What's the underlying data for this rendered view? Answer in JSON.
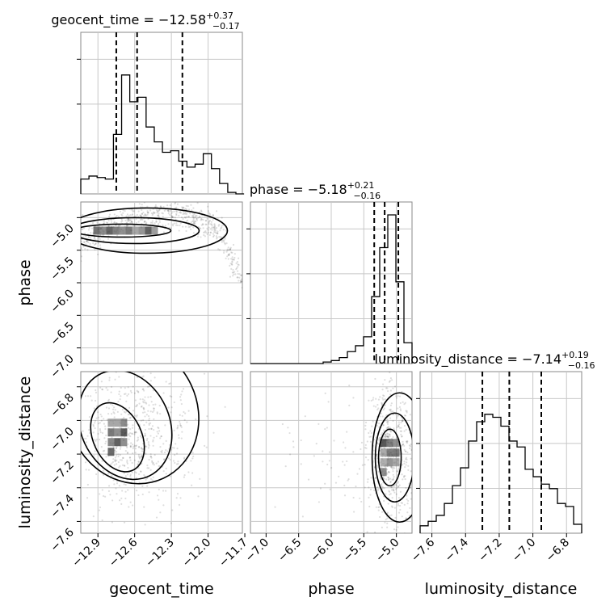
{
  "chart_data": {
    "type": "corner",
    "parameters": [
      "geocent_time",
      "phase",
      "luminosity_distance"
    ],
    "summaries": [
      {
        "param": "geocent_time",
        "label": "geocent_time = ",
        "median": "−12.58",
        "plus": "+0.37",
        "minus": "−0.17",
        "quantiles": [
          -12.75,
          -12.58,
          -12.21
        ]
      },
      {
        "param": "phase",
        "label": "phase = ",
        "median": "−5.18",
        "plus": "+0.21",
        "minus": "−0.16",
        "quantiles": [
          -5.34,
          -5.18,
          -4.97
        ]
      },
      {
        "param": "luminosity_distance",
        "label": "luminosity_distance = ",
        "median": "−7.14",
        "plus": "+0.19",
        "minus": "−0.16",
        "quantiles": [
          -7.3,
          -7.14,
          -6.95
        ]
      }
    ],
    "axes": {
      "geocent_time": {
        "range": [
          -13.04,
          -11.72
        ],
        "ticks": [
          -12.9,
          -12.6,
          -12.3,
          -12.0,
          -11.7
        ],
        "tick_labels": [
          "−12.9",
          "−12.6",
          "−12.3",
          "−12.0",
          "−11.7"
        ]
      },
      "phase": {
        "range": [
          -7.24,
          -4.76
        ],
        "ticks": [
          -7.0,
          -6.5,
          -6.0,
          -5.5,
          -5.0
        ],
        "tick_labels": [
          "−7.0",
          "−6.5",
          "−6.0",
          "−5.5",
          "−5.0"
        ]
      },
      "luminosity_distance": {
        "range": [
          -7.67,
          -6.71
        ],
        "ticks": [
          -7.6,
          -7.4,
          -7.2,
          -7.0,
          -6.8
        ],
        "tick_labels": [
          "−7.6",
          "−7.4",
          "−7.2",
          "−7.0",
          "−6.8"
        ]
      }
    },
    "histograms": {
      "geocent_time": {
        "edges_start": -13.04,
        "bin_width": 0.0667,
        "counts": [
          0.1,
          0.12,
          0.11,
          0.1,
          0.4,
          0.8,
          0.62,
          0.65,
          0.45,
          0.35,
          0.28,
          0.29,
          0.22,
          0.18,
          0.2,
          0.27,
          0.17,
          0.07,
          0.01,
          0.0
        ]
      },
      "phase": {
        "edges_start": -7.24,
        "bin_width": 0.124,
        "counts": [
          0,
          0,
          0,
          0,
          0,
          0,
          0,
          0,
          0,
          0.01,
          0.02,
          0.04,
          0.08,
          0.12,
          0.18,
          0.45,
          0.78,
          1.0,
          0.55,
          0.14
        ]
      },
      "luminosity_distance": {
        "edges_start": -7.67,
        "bin_width": 0.048,
        "counts": [
          0.05,
          0.08,
          0.12,
          0.2,
          0.32,
          0.44,
          0.62,
          0.75,
          0.8,
          0.78,
          0.72,
          0.62,
          0.58,
          0.43,
          0.38,
          0.33,
          0.3,
          0.2,
          0.18,
          0.06
        ]
      }
    },
    "pairs": [
      {
        "x": "geocent_time",
        "y": "phase",
        "density_center": [
          -12.7,
          -5.2
        ]
      },
      {
        "x": "geocent_time",
        "y": "luminosity_distance",
        "density_center": [
          -12.74,
          -7.1
        ]
      },
      {
        "x": "phase",
        "y": "luminosity_distance",
        "density_center": [
          -5.1,
          -7.22
        ]
      }
    ],
    "grid": true
  }
}
